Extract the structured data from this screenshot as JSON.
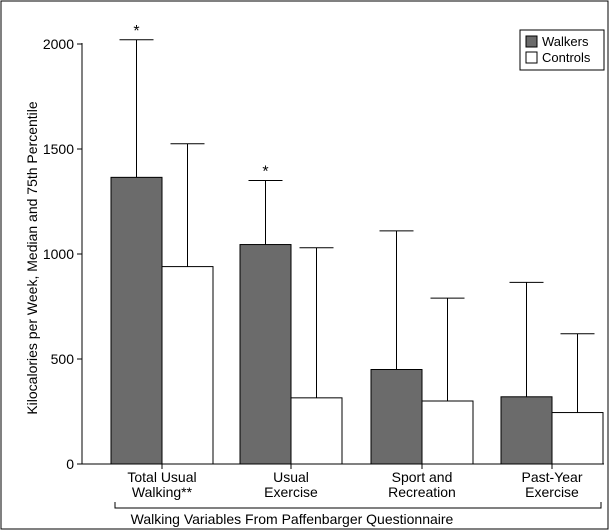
{
  "chart_data": {
    "type": "bar",
    "ylabel": "Kilocalories per Week, Median and 75th Percentile",
    "xlabel": "Walking Variables From Paffenbarger Questionnaire",
    "ylim": [
      0,
      2000
    ],
    "yticks": [
      "0",
      "500",
      "1000",
      "1500",
      "2000"
    ],
    "ytick_values": [
      0,
      500,
      1000,
      1500,
      2000
    ],
    "categories": [
      [
        "Total Usual",
        "Walking**"
      ],
      [
        "Usual",
        "Exercise"
      ],
      [
        "Sport and",
        "Recreation"
      ],
      [
        "Past-Year",
        "Exercise"
      ]
    ],
    "series": [
      {
        "name": "Walkers",
        "color": "#6b6b6b",
        "values": [
          1365,
          1045,
          450,
          320
        ],
        "p75": [
          2020,
          1350,
          1110,
          865
        ]
      },
      {
        "name": "Controls",
        "color": "#ffffff",
        "values": [
          940,
          315,
          300,
          245
        ],
        "p75": [
          1525,
          1030,
          790,
          620
        ]
      }
    ],
    "significance": [
      {
        "category_index": 0,
        "series_index": 0,
        "label": "*"
      },
      {
        "category_index": 1,
        "series_index": 0,
        "label": "*"
      }
    ],
    "legend_position": "top-right",
    "bracket_categories": [
      0,
      3
    ]
  }
}
